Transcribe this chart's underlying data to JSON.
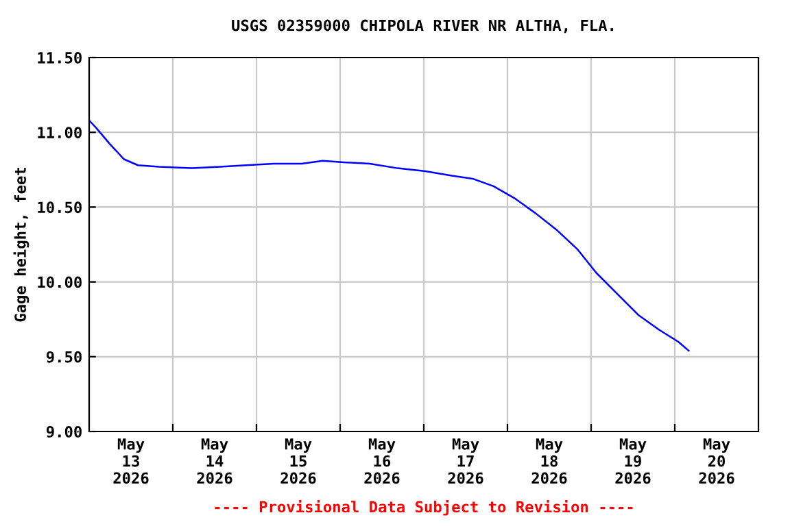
{
  "chart_data": {
    "type": "line",
    "title": "USGS 02359000 CHIPOLA RIVER NR ALTHA, FLA.",
    "ylabel": "Gage height, feet",
    "annotations": [
      "---- Provisional Data Subject to Revision ----"
    ],
    "x": [
      "2026-05-13T00:00",
      "2026-05-13T02:00",
      "2026-05-13T06:00",
      "2026-05-13T10:00",
      "2026-05-13T14:00",
      "2026-05-13T20:00",
      "2026-05-14T05:30",
      "2026-05-14T13:30",
      "2026-05-14T21:00",
      "2026-05-15T05:00",
      "2026-05-15T13:00",
      "2026-05-15T19:00",
      "2026-05-16T01:00",
      "2026-05-16T08:30",
      "2026-05-16T16:30",
      "2026-05-17T00:30",
      "2026-05-17T08:00",
      "2026-05-17T14:00",
      "2026-05-17T20:00",
      "2026-05-18T02:00",
      "2026-05-18T08:00",
      "2026-05-18T14:00",
      "2026-05-18T20:00",
      "2026-05-19T01:30",
      "2026-05-19T07:30",
      "2026-05-19T13:30",
      "2026-05-19T19:30",
      "2026-05-20T01:00",
      "2026-05-20T04:00"
    ],
    "series": [
      {
        "color": "#0000ff",
        "values": [
          11.08,
          11.03,
          10.92,
          10.82,
          10.78,
          10.77,
          10.76,
          10.77,
          10.78,
          10.79,
          10.79,
          10.81,
          10.8,
          10.79,
          10.76,
          10.74,
          10.71,
          10.69,
          10.64,
          10.56,
          10.46,
          10.35,
          10.22,
          10.06,
          9.92,
          9.78,
          9.68,
          9.6,
          9.54
        ]
      }
    ],
    "xlim": [
      "2026-05-13T00:00",
      "2026-05-21T00:00"
    ],
    "xticks": [
      {
        "value": "2026-05-14T00:00",
        "label": null
      },
      {
        "value": "2026-05-15T00:00",
        "label": null
      },
      {
        "value": "2026-05-16T00:00",
        "label": null
      },
      {
        "value": "2026-05-17T00:00",
        "label": null
      },
      {
        "value": "2026-05-18T00:00",
        "label": null
      },
      {
        "value": "2026-05-19T00:00",
        "label": null
      },
      {
        "value": "2026-05-20T00:00",
        "label": null
      },
      {
        "value": "2026-05-13T12:00",
        "label": "May\n13\n2026"
      },
      {
        "value": "2026-05-14T12:00",
        "label": "May\n14\n2026"
      },
      {
        "value": "2026-05-15T12:00",
        "label": "May\n15\n2026"
      },
      {
        "value": "2026-05-16T12:00",
        "label": "May\n16\n2026"
      },
      {
        "value": "2026-05-17T12:00",
        "label": "May\n17\n2026"
      },
      {
        "value": "2026-05-18T12:00",
        "label": "May\n18\n2026"
      },
      {
        "value": "2026-05-19T12:00",
        "label": "May\n19\n2026"
      },
      {
        "value": "2026-05-20T12:00",
        "label": "May\n20\n2026"
      }
    ],
    "ylim": [
      9.0,
      11.5
    ],
    "yticks": [
      {
        "value": 9.0,
        "label": "9.00"
      },
      {
        "value": 9.5,
        "label": "9.50"
      },
      {
        "value": 10.0,
        "label": "10.00"
      },
      {
        "value": 10.5,
        "label": "10.50"
      },
      {
        "value": 11.0,
        "label": "11.00"
      },
      {
        "value": 11.5,
        "label": "11.50"
      }
    ],
    "grid": true,
    "legend": false
  }
}
